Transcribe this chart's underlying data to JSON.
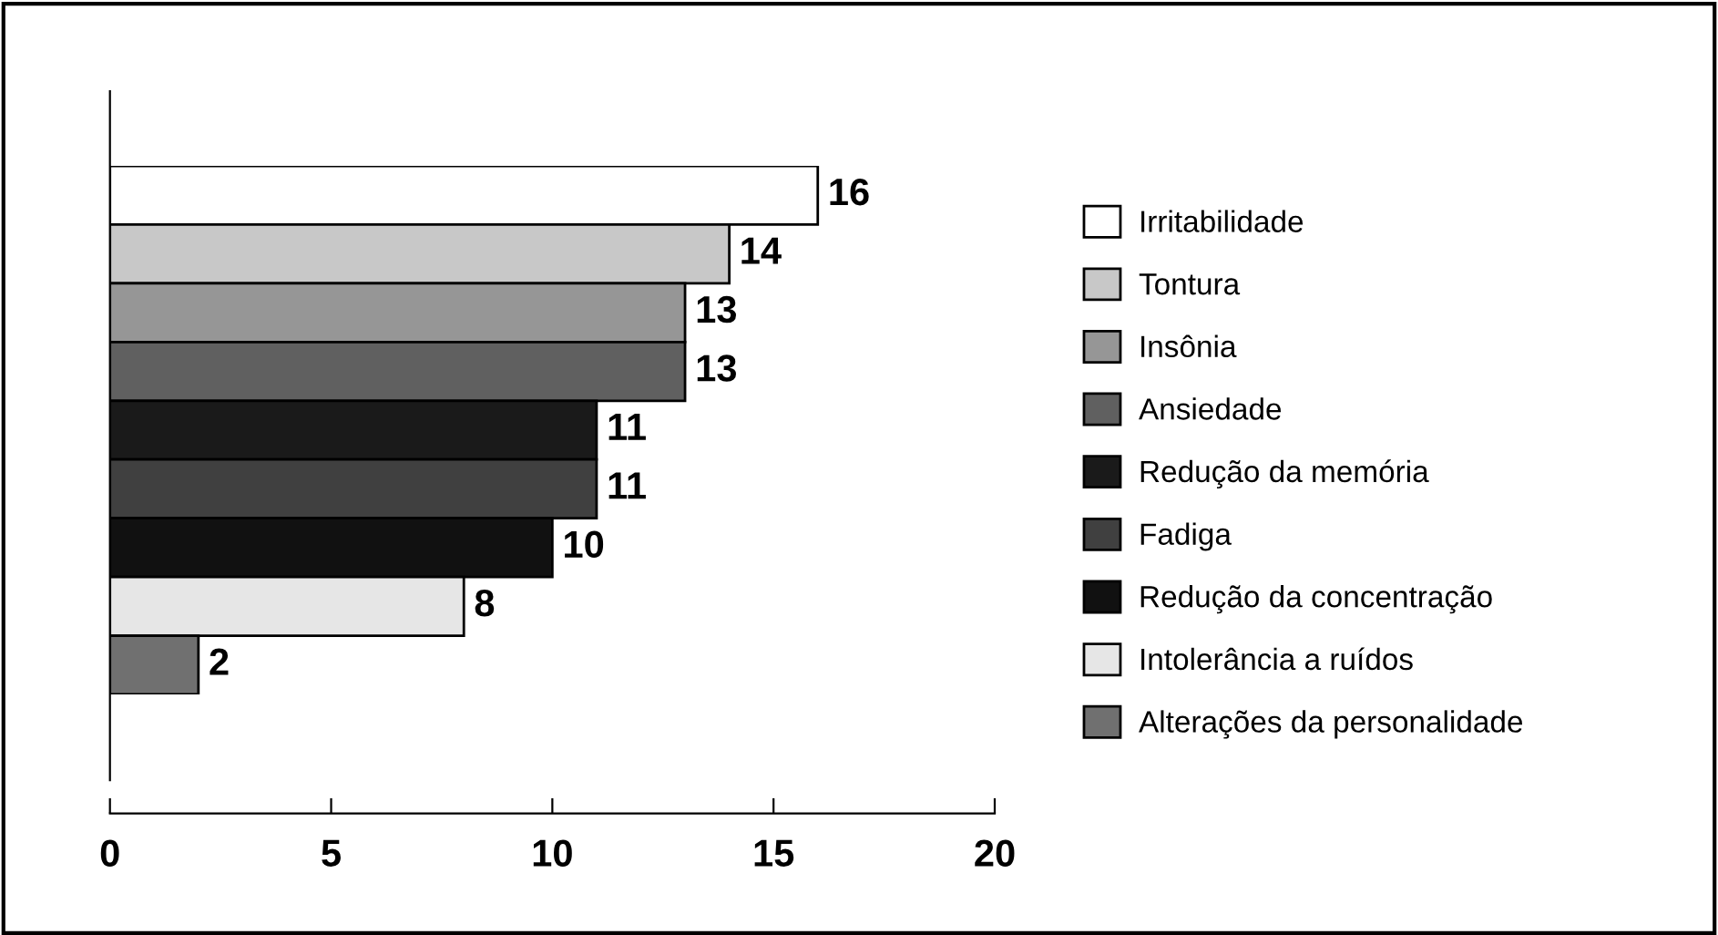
{
  "chart_data": {
    "type": "bar",
    "orientation": "horizontal",
    "categories": [
      null,
      null,
      null,
      null,
      null,
      null,
      null,
      null,
      null
    ],
    "series": [
      {
        "name": "Irritabilidade",
        "color": "#ffffff",
        "values": [
          16,
          null,
          null,
          null,
          null,
          null,
          null,
          null,
          null
        ]
      },
      {
        "name": "Tontura",
        "color": "#c8c8c8",
        "values": [
          null,
          14,
          null,
          null,
          null,
          null,
          null,
          null,
          null
        ]
      },
      {
        "name": "Insônia",
        "color": "#969696",
        "values": [
          null,
          null,
          13,
          null,
          null,
          null,
          null,
          null,
          null
        ]
      },
      {
        "name": "Ansiedade",
        "color": "#606060",
        "values": [
          null,
          null,
          null,
          13,
          null,
          null,
          null,
          null,
          null
        ]
      },
      {
        "name": "Redução da memória",
        "color": "#1a1a1a",
        "values": [
          null,
          null,
          null,
          null,
          11,
          null,
          null,
          null,
          null
        ]
      },
      {
        "name": "Fadiga",
        "color": "#404040",
        "values": [
          null,
          null,
          null,
          null,
          null,
          11,
          null,
          null,
          null
        ]
      },
      {
        "name": "Redução da concentração",
        "color": "#111111",
        "values": [
          null,
          null,
          null,
          null,
          null,
          null,
          10,
          null,
          null
        ]
      },
      {
        "name": "Intolerância a ruídos",
        "color": "#e6e6e6",
        "values": [
          null,
          null,
          null,
          null,
          null,
          null,
          null,
          8,
          null
        ]
      },
      {
        "name": "Alterações da personalidade",
        "color": "#707070",
        "values": [
          null,
          null,
          null,
          null,
          null,
          null,
          null,
          null,
          2
        ]
      }
    ],
    "stacked": true,
    "xlim": [
      0,
      20
    ],
    "xticks": [
      0,
      5,
      10,
      15,
      20
    ],
    "data_labels": true,
    "legend": "right",
    "grid": false,
    "tick_labels": "x"
  }
}
